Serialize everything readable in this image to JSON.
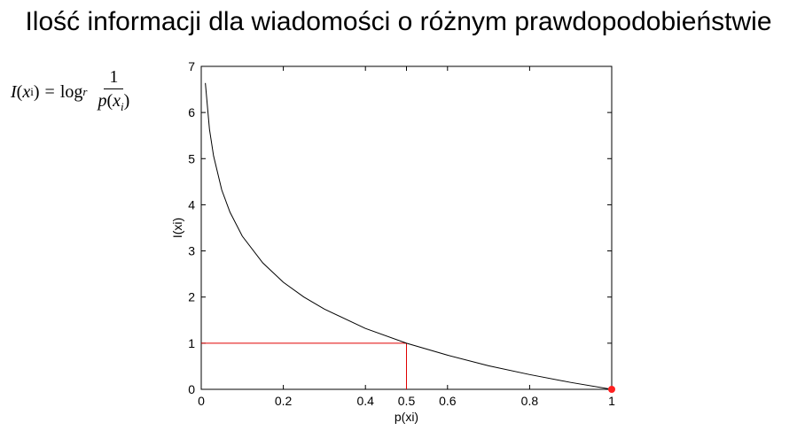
{
  "title": "Ilość informacji dla wiadomości o różnym prawdopodobieństwie",
  "formula": {
    "lhs_symbol": "I",
    "lhs_arg": "x",
    "lhs_sub": "i",
    "equals": "=",
    "log": "log",
    "log_base": "r",
    "numerator": "1",
    "den_symbol": "p",
    "den_arg": "x",
    "den_sub": "i"
  },
  "chart_data": {
    "type": "line",
    "title": "",
    "xlabel": "p(xi)",
    "ylabel": "I(xi)",
    "xlim": [
      0,
      1
    ],
    "ylim": [
      0,
      7
    ],
    "x_ticks": [
      0,
      0.2,
      0.4,
      0.5,
      0.6,
      0.8,
      1
    ],
    "x_tick_labels": [
      "0",
      "0.2",
      "0.4",
      "0.5",
      "0.6",
      "0.8",
      "1"
    ],
    "y_ticks": [
      0,
      1,
      2,
      3,
      4,
      5,
      6,
      7
    ],
    "y_tick_labels": [
      "0",
      "1",
      "2",
      "3",
      "4",
      "5",
      "6",
      "7"
    ],
    "grid": false,
    "series": [
      {
        "function": "-log2(p)",
        "x": [
          0.01,
          0.02,
          0.03,
          0.05,
          0.07,
          0.1,
          0.15,
          0.2,
          0.25,
          0.3,
          0.4,
          0.5,
          0.6,
          0.7,
          0.8,
          0.9,
          1.0
        ],
        "y": [
          6.64,
          5.64,
          5.06,
          4.32,
          3.84,
          3.32,
          2.74,
          2.32,
          2.0,
          1.74,
          1.32,
          1.0,
          0.74,
          0.51,
          0.32,
          0.15,
          0.0
        ],
        "color": "#000000"
      }
    ],
    "annotations": [
      {
        "type": "guide",
        "point": [
          0.5,
          1
        ],
        "color": "#e00000"
      },
      {
        "type": "marker",
        "point": [
          1,
          0
        ],
        "color": "#ff2020"
      }
    ]
  }
}
